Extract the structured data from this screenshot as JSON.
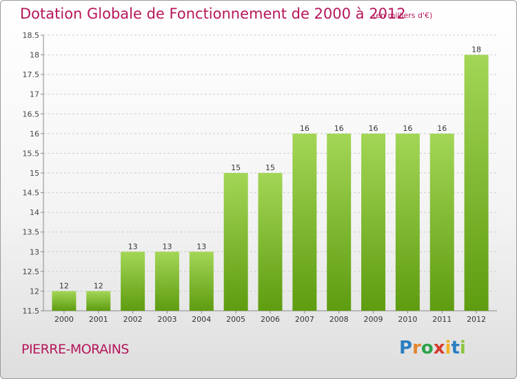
{
  "title": "Dotation Globale de Fonctionnement de 2000 à 2012",
  "unit_note": "(en milliers d'€)",
  "commune": "PIERRE-MORAINS",
  "logo": {
    "text": "Proxiti",
    "letters": [
      "P",
      "r",
      "o",
      "x",
      "i",
      "t",
      "i"
    ]
  },
  "colors": {
    "title": "#b5165a",
    "bar_light": "#9ed24f",
    "bar_dark": "#5f9e12",
    "grid": "#cfcfcf"
  },
  "chart_data": {
    "type": "bar",
    "categories": [
      "2000",
      "2001",
      "2002",
      "2003",
      "2004",
      "2005",
      "2006",
      "2007",
      "2008",
      "2009",
      "2010",
      "2011",
      "2012"
    ],
    "values": [
      12,
      12,
      13,
      13,
      13,
      15,
      15,
      16,
      16,
      16,
      16,
      16,
      18
    ],
    "data_labels": [
      "12",
      "12",
      "13",
      "13",
      "13",
      "15",
      "15",
      "16",
      "16",
      "16",
      "16",
      "16",
      "18"
    ],
    "ylim": [
      11.5,
      18.5
    ],
    "yticks": [
      11.5,
      12,
      12.5,
      13,
      13.5,
      14,
      14.5,
      15,
      15.5,
      16,
      16.5,
      17,
      17.5,
      18,
      18.5
    ],
    "ytick_labels": [
      "11.5",
      "12",
      "12.5",
      "13",
      "13.5",
      "14",
      "14.5",
      "15",
      "15.5",
      "16",
      "16.5",
      "17",
      "17.5",
      "18",
      "18.5"
    ],
    "grid": "horizontal dashed",
    "xlabel": "",
    "ylabel": ""
  }
}
